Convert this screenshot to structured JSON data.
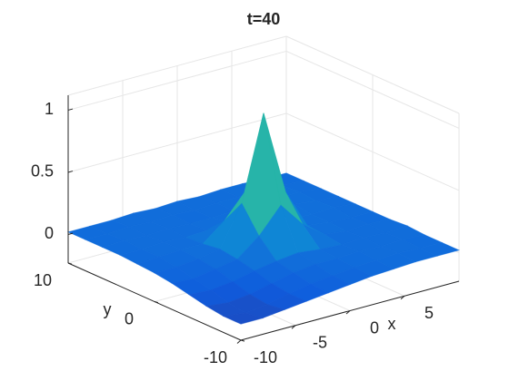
{
  "chart_data": {
    "type": "surface",
    "title": "t=40",
    "x_label": "x",
    "y_label": "y",
    "x": [
      -10,
      -8,
      -6,
      -4,
      -2,
      0,
      2,
      4,
      6,
      8,
      10
    ],
    "y": [
      -10,
      -8,
      -6,
      -4,
      -2,
      0,
      2,
      4,
      6,
      8,
      10
    ],
    "z": [
      [
        -0.1,
        -0.1,
        -0.08,
        -0.06,
        -0.04,
        -0.02,
        0,
        0.01,
        0.02,
        0.02,
        0.02
      ],
      [
        -0.1,
        -0.12,
        -0.1,
        -0.06,
        -0.03,
        -0.01,
        0.01,
        0.02,
        0.03,
        0.02,
        0.02
      ],
      [
        -0.08,
        -0.1,
        -0.08,
        -0.04,
        0,
        0.02,
        0.02,
        0.03,
        0.02,
        0.03,
        0.02
      ],
      [
        -0.05,
        -0.06,
        -0.04,
        0,
        0.03,
        0.05,
        0.03,
        0.02,
        0.03,
        0.02,
        0.03
      ],
      [
        -0.02,
        -0.03,
        0,
        0.03,
        0.17,
        0.37,
        0.17,
        0.04,
        0.02,
        0.03,
        0.02
      ],
      [
        0,
        0,
        0.02,
        0.05,
        0.37,
        1.05,
        0.37,
        0.05,
        0.03,
        0.02,
        0.02
      ],
      [
        0.01,
        0.02,
        0.03,
        0.03,
        0.17,
        0.37,
        0.17,
        0.04,
        0.03,
        0.04,
        0.02
      ],
      [
        0.02,
        0.02,
        0.03,
        0.02,
        0.03,
        0.05,
        0.03,
        0.04,
        0.05,
        0.03,
        0.02
      ],
      [
        0.02,
        0.03,
        0.02,
        0.03,
        0.02,
        0.02,
        0.03,
        0.04,
        0.03,
        0.04,
        0.02
      ],
      [
        0.02,
        0.02,
        0.03,
        0.02,
        0.03,
        0.02,
        0.03,
        0.03,
        0.04,
        0.03,
        0.02
      ],
      [
        0.02,
        0.02,
        0.02,
        0.03,
        0.02,
        0.03,
        0.02,
        0.03,
        0.03,
        0.02,
        0.02
      ]
    ],
    "xlim": [
      -10,
      10
    ],
    "ylim": [
      -10,
      10
    ],
    "zlim": [
      -0.23,
      1.12
    ],
    "xticks": [
      -10,
      -5,
      0,
      5
    ],
    "yticks": [
      -10,
      0,
      10
    ],
    "zticks": [
      0,
      0.5,
      1
    ],
    "colormap": "parula",
    "grid": true
  }
}
